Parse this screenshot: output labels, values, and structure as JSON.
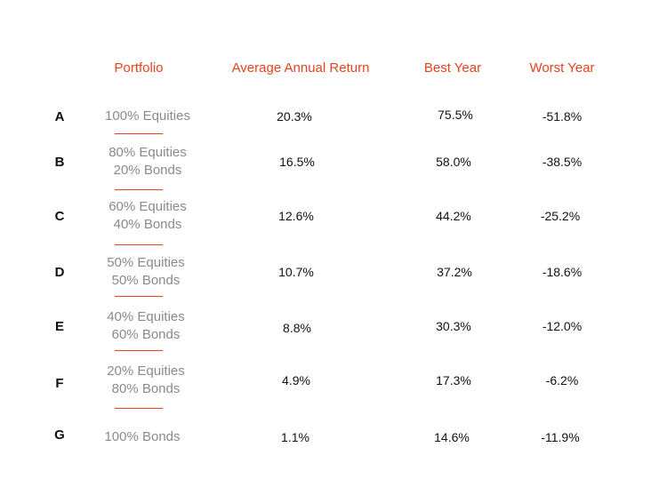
{
  "header": {
    "portfolio": "Portfolio",
    "average_annual_return": "Average Annual Return",
    "best_year": "Best Year",
    "worst_year": "Worst Year"
  },
  "rows": [
    {
      "letter": "A",
      "portfolio_line1": "100% Equities",
      "portfolio_line2": "",
      "average": "20.3%",
      "best": "75.5%",
      "worst": "-51.8%"
    },
    {
      "letter": "B",
      "portfolio_line1": "80% Equities",
      "portfolio_line2": "20% Bonds",
      "average": "16.5%",
      "best": "58.0%",
      "worst": "-38.5%"
    },
    {
      "letter": "C",
      "portfolio_line1": "60% Equities",
      "portfolio_line2": "40% Bonds",
      "average": "12.6%",
      "best": "44.2%",
      "worst": "-25.2%"
    },
    {
      "letter": "D",
      "portfolio_line1": "50% Equities",
      "portfolio_line2": "50% Bonds",
      "average": "10.7%",
      "best": "37.2%",
      "worst": "-18.6%"
    },
    {
      "letter": "E",
      "portfolio_line1": "40% Equities",
      "portfolio_line2": "60% Bonds",
      "average": "8.8%",
      "best": "30.3%",
      "worst": "-12.0%"
    },
    {
      "letter": "F",
      "portfolio_line1": "20% Equities",
      "portfolio_line2": "80% Bonds",
      "average": "4.9%",
      "best": "17.3%",
      "worst": "-6.2%"
    },
    {
      "letter": "G",
      "portfolio_line1": "100% Bonds",
      "portfolio_line2": "",
      "average": "1.1%",
      "best": "14.6%",
      "worst": "-11.9%"
    }
  ],
  "colors": {
    "accent": "#e8431c",
    "portfolio_text": "#8a8a8a",
    "value_text": "#111111"
  }
}
